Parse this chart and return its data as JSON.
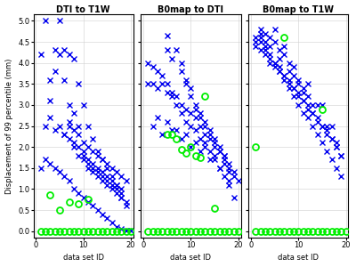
{
  "titles": [
    "DTI to T1W",
    "B0map to DTI",
    "B0map to T1W"
  ],
  "xlabel": "data set ID",
  "ylabel": "Displacement of 99 percentile (mm)",
  "xlim": [
    -0.5,
    20.5
  ],
  "ylim": [
    -0.15,
    5.15
  ],
  "yticks": [
    0,
    0.5,
    1,
    1.5,
    2,
    2.5,
    3,
    3.5,
    4,
    4.5,
    5
  ],
  "xticks": [
    0,
    10,
    20
  ],
  "blue_color": "#0000EE",
  "green_color": "#00EE00",
  "bg_color": "#FFFFFF",
  "panel1_blue_x": [
    2,
    5,
    3,
    4,
    6,
    7,
    7,
    8,
    8,
    9,
    9,
    10,
    10,
    11,
    11,
    12,
    12,
    13,
    13,
    14,
    14,
    15,
    15,
    16,
    16,
    17,
    17,
    18,
    18,
    19,
    1,
    5,
    6,
    7,
    8,
    9,
    10,
    11,
    12,
    13,
    14,
    15,
    16,
    17,
    18,
    3,
    4,
    6,
    7,
    8,
    9,
    10,
    11,
    12,
    13,
    14,
    15,
    16,
    17,
    18,
    19,
    2,
    3,
    4,
    5,
    6,
    7,
    8,
    9,
    10,
    11,
    12,
    13,
    14,
    15,
    16,
    17,
    18,
    19,
    1,
    2,
    3,
    4,
    5,
    6,
    7,
    8,
    9,
    10,
    11,
    12,
    13,
    14,
    15,
    16,
    17,
    18,
    19,
    20
  ],
  "panel1_blue_y": [
    5.0,
    5.0,
    3.6,
    4.3,
    3.6,
    3.0,
    2.5,
    2.8,
    2.0,
    2.5,
    2.3,
    2.1,
    1.8,
    2.0,
    1.7,
    1.9,
    1.6,
    1.8,
    1.5,
    1.7,
    1.4,
    1.6,
    1.3,
    1.5,
    1.2,
    1.4,
    1.1,
    1.3,
    1.0,
    1.2,
    4.2,
    4.2,
    4.3,
    4.2,
    4.1,
    3.5,
    3.0,
    2.5,
    2.2,
    1.9,
    1.7,
    1.5,
    1.3,
    1.1,
    0.9,
    3.1,
    3.8,
    2.3,
    2.6,
    2.4,
    2.0,
    1.9,
    1.6,
    1.5,
    1.4,
    1.3,
    1.2,
    1.1,
    1.0,
    0.8,
    0.7,
    2.5,
    2.7,
    2.4,
    2.5,
    2.3,
    2.2,
    2.1,
    1.8,
    1.7,
    1.5,
    1.4,
    1.3,
    1.2,
    1.1,
    1.0,
    0.9,
    0.8,
    0.6,
    1.5,
    1.7,
    1.6,
    1.5,
    1.4,
    1.3,
    1.2,
    1.0,
    0.9,
    0.8,
    0.7,
    0.6,
    0.5,
    0.4,
    0.3,
    0.2,
    0.1,
    0.05,
    0.02,
    0.01
  ],
  "panel1_green_x": [
    1,
    2,
    3,
    4,
    5,
    6,
    7,
    8,
    9,
    10,
    11,
    12,
    13,
    14,
    15,
    16,
    17,
    18,
    19,
    20,
    3,
    5,
    7,
    9,
    11
  ],
  "panel1_green_y": [
    0.0,
    0.0,
    0.0,
    0.0,
    0.0,
    0.0,
    0.0,
    0.0,
    0.0,
    0.0,
    0.0,
    0.0,
    0.0,
    0.0,
    0.0,
    0.0,
    0.0,
    0.0,
    0.0,
    0.0,
    0.85,
    0.5,
    0.7,
    0.65,
    0.75
  ],
  "panel2_blue_x": [
    5,
    5,
    6,
    7,
    8,
    8,
    9,
    9,
    10,
    10,
    11,
    11,
    12,
    12,
    13,
    13,
    14,
    14,
    15,
    15,
    16,
    16,
    17,
    17,
    18,
    18,
    19,
    1,
    2,
    3,
    4,
    5,
    6,
    7,
    8,
    9,
    10,
    11,
    12,
    13,
    14,
    15,
    16,
    17,
    18,
    19,
    20,
    1,
    2,
    3,
    4,
    5,
    6,
    7,
    8,
    9,
    10,
    11,
    12,
    13,
    14,
    15,
    16,
    17,
    18,
    2,
    4,
    6,
    8,
    10,
    12,
    14,
    16,
    18,
    3,
    5,
    7,
    9,
    11,
    13,
    15,
    17,
    19
  ],
  "panel2_blue_y": [
    4.65,
    4.3,
    4.1,
    4.3,
    4.0,
    3.8,
    3.6,
    3.5,
    3.4,
    3.2,
    3.0,
    2.9,
    2.8,
    2.7,
    2.6,
    2.5,
    2.4,
    2.3,
    2.2,
    2.1,
    2.0,
    1.9,
    1.8,
    1.7,
    1.5,
    1.4,
    1.3,
    3.5,
    3.5,
    3.4,
    3.5,
    3.3,
    3.2,
    3.2,
    3.0,
    2.9,
    2.8,
    2.7,
    2.5,
    2.3,
    2.2,
    2.0,
    1.9,
    1.8,
    1.6,
    1.4,
    1.2,
    4.0,
    3.9,
    3.8,
    3.7,
    3.5,
    3.3,
    3.0,
    2.8,
    2.6,
    2.5,
    2.4,
    2.2,
    2.1,
    1.9,
    1.7,
    1.5,
    1.3,
    1.1,
    2.5,
    2.3,
    2.4,
    2.2,
    2.0,
    1.9,
    1.7,
    1.5,
    1.2,
    2.7,
    2.6,
    2.4,
    2.3,
    2.1,
    2.0,
    1.8,
    1.6,
    0.8
  ],
  "panel2_green_x": [
    1,
    2,
    3,
    4,
    5,
    6,
    7,
    8,
    9,
    10,
    11,
    12,
    13,
    14,
    15,
    16,
    17,
    18,
    19,
    20,
    5,
    6,
    7,
    8,
    9,
    10,
    11,
    12,
    13,
    15
  ],
  "panel2_green_y": [
    0.0,
    0.0,
    0.0,
    0.0,
    0.0,
    0.0,
    0.0,
    0.0,
    0.0,
    0.0,
    0.0,
    0.0,
    0.0,
    0.0,
    0.0,
    0.0,
    0.0,
    0.0,
    0.0,
    0.0,
    2.3,
    2.3,
    2.2,
    1.95,
    1.85,
    2.0,
    1.8,
    1.75,
    3.2,
    0.55
  ],
  "panel3_blue_x": [
    1,
    2,
    2,
    3,
    3,
    4,
    4,
    5,
    5,
    6,
    6,
    7,
    7,
    8,
    8,
    9,
    9,
    10,
    10,
    11,
    11,
    12,
    12,
    13,
    14,
    15,
    16,
    17,
    18,
    19,
    1,
    2,
    3,
    4,
    5,
    6,
    7,
    8,
    9,
    10,
    11,
    12,
    13,
    14,
    15,
    16,
    17,
    18,
    19,
    1,
    2,
    3,
    4,
    5,
    6,
    7,
    8,
    9,
    10,
    11,
    12,
    13,
    14,
    15,
    16,
    17,
    18,
    19,
    2,
    4,
    6,
    8,
    10,
    12,
    14,
    16,
    18,
    3,
    5,
    7,
    9,
    11,
    13,
    15,
    17
  ],
  "panel3_blue_y": [
    4.5,
    4.8,
    4.6,
    4.7,
    4.5,
    4.6,
    4.4,
    4.8,
    4.5,
    4.3,
    4.1,
    4.2,
    4.4,
    4.0,
    3.8,
    3.9,
    3.7,
    3.5,
    3.6,
    3.4,
    3.3,
    3.2,
    3.5,
    3.0,
    3.0,
    3.0,
    2.5,
    2.5,
    2.0,
    1.8,
    4.4,
    4.3,
    4.2,
    4.0,
    3.9,
    3.8,
    3.7,
    3.5,
    3.4,
    3.2,
    3.1,
    2.9,
    2.8,
    2.6,
    2.5,
    2.3,
    2.2,
    2.0,
    1.8,
    4.6,
    4.5,
    4.3,
    4.1,
    4.0,
    3.8,
    3.6,
    3.4,
    3.2,
    3.0,
    2.8,
    2.7,
    2.5,
    2.3,
    2.1,
    1.9,
    1.7,
    1.5,
    1.3,
    4.7,
    4.2,
    3.9,
    3.6,
    3.3,
    3.0,
    2.7,
    2.4,
    2.1,
    4.4,
    4.0,
    3.7,
    3.4,
    3.1,
    2.8,
    2.5,
    2.2
  ],
  "panel3_green_x": [
    1,
    2,
    3,
    4,
    5,
    6,
    7,
    8,
    9,
    10,
    11,
    12,
    13,
    14,
    15,
    16,
    17,
    18,
    19,
    20,
    7,
    15,
    1
  ],
  "panel3_green_y": [
    0.0,
    0.0,
    0.0,
    0.0,
    0.0,
    0.0,
    0.0,
    0.0,
    0.0,
    0.0,
    0.0,
    0.0,
    0.0,
    0.0,
    0.0,
    0.0,
    0.0,
    0.0,
    0.0,
    0.0,
    4.6,
    2.9,
    2.0
  ],
  "figsize": [
    4.0,
    3.0
  ],
  "dpi": 100
}
